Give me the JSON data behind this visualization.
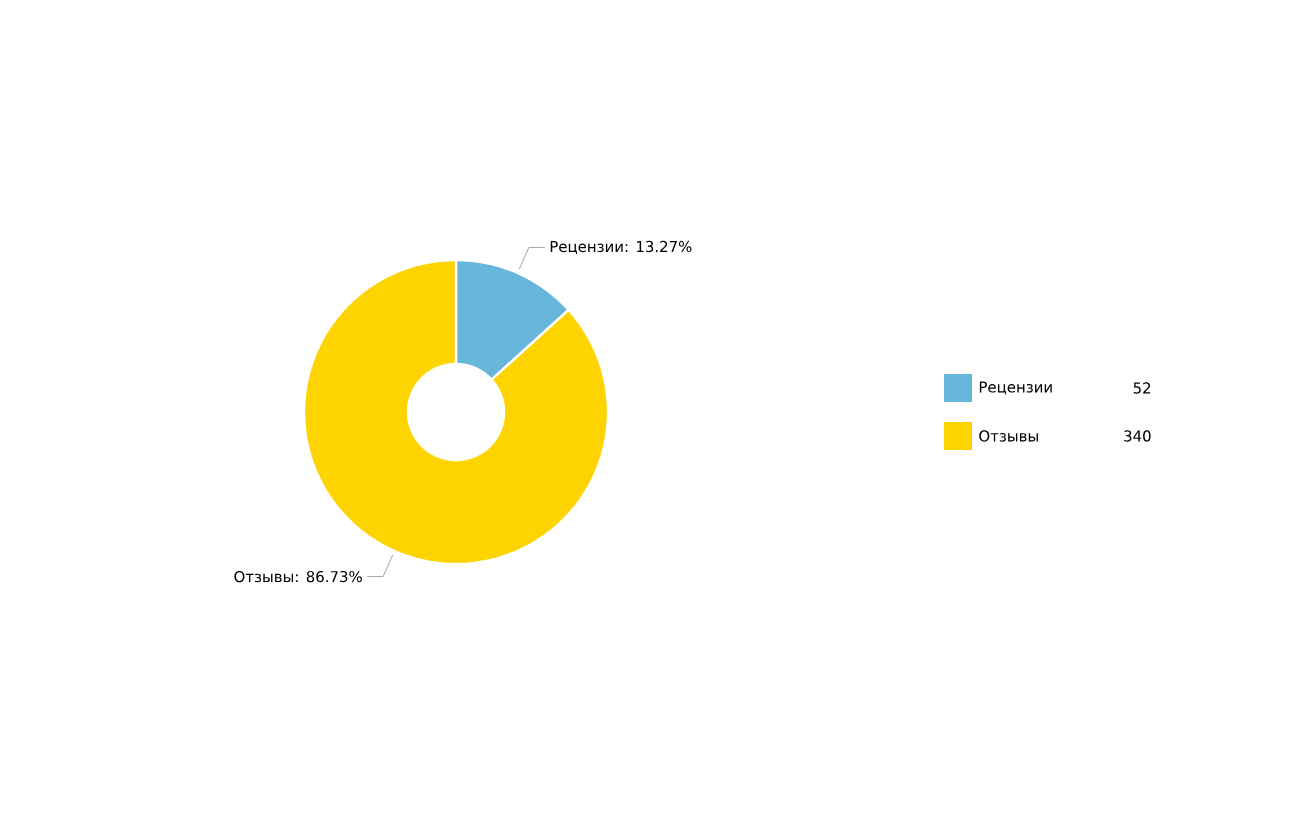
{
  "chart_data": {
    "type": "donut",
    "categories": [
      "Рецензии",
      "Отзывы"
    ],
    "values": [
      13.27,
      86.73
    ],
    "colors": [
      "#67b7dc",
      "#fdd400"
    ],
    "value_labels": [
      "Рецензии: 13.27%",
      "Отзывы: 86.73%"
    ],
    "annotations": [
      "52",
      "340"
    ],
    "legend": "right"
  }
}
